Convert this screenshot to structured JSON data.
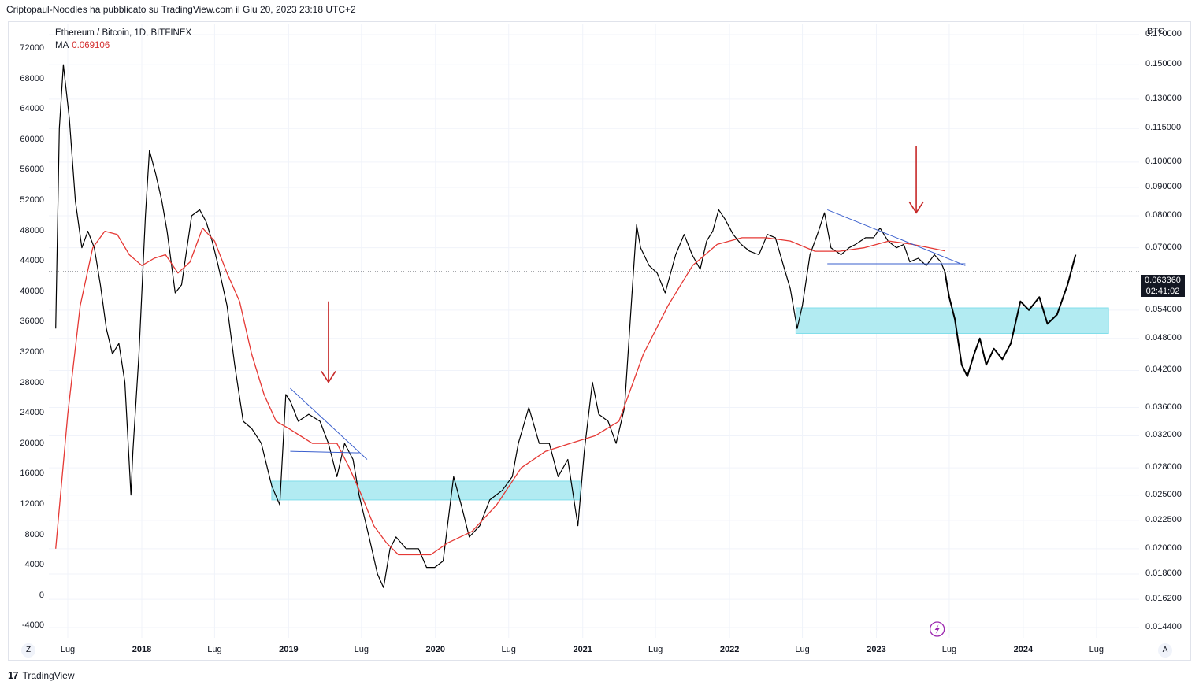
{
  "header": {
    "attribution": "Criptopaul-Noodles ha pubblicato su TradingView.com il Giu 20, 2023 23:18 UTC+2"
  },
  "legend": {
    "symbol": "Ethereum / Bitcoin, 1D, BITFINEX",
    "ma_label": "MA",
    "ma_value": "0.069106"
  },
  "right_axis": {
    "unit": "BTC",
    "current_price": "0.063360",
    "countdown": "02:41:02"
  },
  "footer": {
    "brand": "TradingView",
    "logo_text": "17"
  },
  "buttons": {
    "z_label": "Z",
    "a_label": "A"
  },
  "chart_data": {
    "type": "line",
    "title": "Ethereum / Bitcoin, 1D, BITFINEX",
    "left_axis_ticks": [
      "72000",
      "68000",
      "64000",
      "60000",
      "56000",
      "52000",
      "48000",
      "44000",
      "40000",
      "36000",
      "32000",
      "28000",
      "24000",
      "20000",
      "16000",
      "12000",
      "8000",
      "4000",
      "0",
      "-4000"
    ],
    "right_axis_ticks": [
      "0.170000",
      "0.150000",
      "0.130000",
      "0.115000",
      "0.100000",
      "0.090000",
      "0.080000",
      "0.070000",
      "0.054000",
      "0.048000",
      "0.042000",
      "0.036000",
      "0.032000",
      "0.028000",
      "0.025000",
      "0.022500",
      "0.020000",
      "0.018000",
      "0.016200",
      "0.014400"
    ],
    "x_ticks": [
      {
        "label": "Lug",
        "year": false
      },
      {
        "label": "2018",
        "year": true
      },
      {
        "label": "Lug",
        "year": false
      },
      {
        "label": "2019",
        "year": true
      },
      {
        "label": "Lug",
        "year": false
      },
      {
        "label": "2020",
        "year": true
      },
      {
        "label": "Lug",
        "year": false
      },
      {
        "label": "2021",
        "year": true
      },
      {
        "label": "Lug",
        "year": false
      },
      {
        "label": "2022",
        "year": true
      },
      {
        "label": "Lug",
        "year": false
      },
      {
        "label": "2023",
        "year": true
      },
      {
        "label": "Lug",
        "year": false
      },
      {
        "label": "2024",
        "year": true
      },
      {
        "label": "Lug",
        "year": false
      }
    ],
    "y_scale": "log",
    "current_price": 0.06336,
    "series": [
      {
        "name": "Ethereum / Bitcoin",
        "color": "#000000",
        "points": [
          [
            "2017-06-01",
            0.05
          ],
          [
            "2017-06-10",
            0.115
          ],
          [
            "2017-06-20",
            0.15
          ],
          [
            "2017-07-05",
            0.12
          ],
          [
            "2017-07-20",
            0.085
          ],
          [
            "2017-08-05",
            0.07
          ],
          [
            "2017-08-20",
            0.075
          ],
          [
            "2017-09-05",
            0.07
          ],
          [
            "2017-09-20",
            0.06
          ],
          [
            "2017-10-05",
            0.05
          ],
          [
            "2017-10-20",
            0.045
          ],
          [
            "2017-11-05",
            0.047
          ],
          [
            "2017-11-20",
            0.04
          ],
          [
            "2017-12-05",
            0.025
          ],
          [
            "2017-12-10",
            0.03
          ],
          [
            "2017-12-25",
            0.045
          ],
          [
            "2018-01-10",
            0.08
          ],
          [
            "2018-01-20",
            0.105
          ],
          [
            "2018-02-05",
            0.095
          ],
          [
            "2018-02-20",
            0.085
          ],
          [
            "2018-03-05",
            0.075
          ],
          [
            "2018-03-25",
            0.058
          ],
          [
            "2018-04-10",
            0.06
          ],
          [
            "2018-05-05",
            0.08
          ],
          [
            "2018-05-25",
            0.082
          ],
          [
            "2018-06-10",
            0.078
          ],
          [
            "2018-06-25",
            0.072
          ],
          [
            "2018-07-10",
            0.065
          ],
          [
            "2018-08-01",
            0.055
          ],
          [
            "2018-08-20",
            0.043
          ],
          [
            "2018-09-10",
            0.034
          ],
          [
            "2018-10-01",
            0.033
          ],
          [
            "2018-10-25",
            0.031
          ],
          [
            "2018-11-20",
            0.026
          ],
          [
            "2018-12-10",
            0.024
          ],
          [
            "2018-12-25",
            0.038
          ],
          [
            "2019-01-05",
            0.037
          ],
          [
            "2019-01-25",
            0.034
          ],
          [
            "2019-02-20",
            0.035
          ],
          [
            "2019-03-20",
            0.034
          ],
          [
            "2019-04-10",
            0.031
          ],
          [
            "2019-05-01",
            0.027
          ],
          [
            "2019-05-20",
            0.031
          ],
          [
            "2019-06-10",
            0.029
          ],
          [
            "2019-06-25",
            0.025
          ],
          [
            "2019-07-20",
            0.021
          ],
          [
            "2019-08-10",
            0.018
          ],
          [
            "2019-08-25",
            0.017
          ],
          [
            "2019-09-10",
            0.02
          ],
          [
            "2019-09-25",
            0.021
          ],
          [
            "2019-10-20",
            0.02
          ],
          [
            "2019-11-20",
            0.02
          ],
          [
            "2019-12-10",
            0.0185
          ],
          [
            "2019-12-30",
            0.0185
          ],
          [
            "2020-01-20",
            0.019
          ],
          [
            "2020-02-15",
            0.027
          ],
          [
            "2020-03-05",
            0.024
          ],
          [
            "2020-03-25",
            0.021
          ],
          [
            "2020-04-20",
            0.022
          ],
          [
            "2020-05-15",
            0.0245
          ],
          [
            "2020-06-15",
            0.0255
          ],
          [
            "2020-07-10",
            0.027
          ],
          [
            "2020-07-25",
            0.031
          ],
          [
            "2020-08-20",
            0.036
          ],
          [
            "2020-09-15",
            0.031
          ],
          [
            "2020-10-10",
            0.031
          ],
          [
            "2020-11-01",
            0.027
          ],
          [
            "2020-11-25",
            0.029
          ],
          [
            "2020-12-20",
            0.022
          ],
          [
            "2021-01-05",
            0.03
          ],
          [
            "2021-01-25",
            0.04
          ],
          [
            "2021-02-10",
            0.035
          ],
          [
            "2021-03-05",
            0.034
          ],
          [
            "2021-03-25",
            0.031
          ],
          [
            "2021-04-15",
            0.036
          ],
          [
            "2021-05-05",
            0.06
          ],
          [
            "2021-05-15",
            0.077
          ],
          [
            "2021-05-25",
            0.07
          ],
          [
            "2021-06-15",
            0.065
          ],
          [
            "2021-07-05",
            0.063
          ],
          [
            "2021-07-25",
            0.058
          ],
          [
            "2021-08-20",
            0.068
          ],
          [
            "2021-09-10",
            0.074
          ],
          [
            "2021-09-30",
            0.068
          ],
          [
            "2021-10-20",
            0.064
          ],
          [
            "2021-11-05",
            0.072
          ],
          [
            "2021-11-20",
            0.075
          ],
          [
            "2021-12-05",
            0.082
          ],
          [
            "2021-12-20",
            0.079
          ],
          [
            "2022-01-10",
            0.074
          ],
          [
            "2022-01-30",
            0.071
          ],
          [
            "2022-02-20",
            0.069
          ],
          [
            "2022-03-15",
            0.068
          ],
          [
            "2022-04-05",
            0.074
          ],
          [
            "2022-04-25",
            0.073
          ],
          [
            "2022-05-15",
            0.065
          ],
          [
            "2022-06-01",
            0.059
          ],
          [
            "2022-06-18",
            0.05
          ],
          [
            "2022-07-01",
            0.055
          ],
          [
            "2022-07-20",
            0.068
          ],
          [
            "2022-08-10",
            0.075
          ],
          [
            "2022-08-25",
            0.081
          ],
          [
            "2022-09-10",
            0.07
          ],
          [
            "2022-10-05",
            0.068
          ],
          [
            "2022-10-25",
            0.07
          ],
          [
            "2022-11-10",
            0.071
          ],
          [
            "2022-12-05",
            0.073
          ],
          [
            "2022-12-25",
            0.073
          ],
          [
            "2023-01-10",
            0.076
          ],
          [
            "2023-01-30",
            0.072
          ],
          [
            "2023-02-20",
            0.07
          ],
          [
            "2023-03-10",
            0.071
          ],
          [
            "2023-03-25",
            0.066
          ],
          [
            "2023-04-15",
            0.067
          ],
          [
            "2023-05-05",
            0.065
          ],
          [
            "2023-05-25",
            0.068
          ],
          [
            "2023-06-10",
            0.066
          ],
          [
            "2023-06-20",
            0.0634
          ]
        ]
      },
      {
        "name": "MA",
        "color": "#e53935",
        "points": [
          [
            "2017-06-01",
            0.02
          ],
          [
            "2017-07-01",
            0.035
          ],
          [
            "2017-08-01",
            0.055
          ],
          [
            "2017-09-01",
            0.07
          ],
          [
            "2017-10-01",
            0.075
          ],
          [
            "2017-11-01",
            0.074
          ],
          [
            "2017-12-01",
            0.068
          ],
          [
            "2018-01-01",
            0.065
          ],
          [
            "2018-02-01",
            0.067
          ],
          [
            "2018-03-01",
            0.068
          ],
          [
            "2018-04-01",
            0.063
          ],
          [
            "2018-05-01",
            0.066
          ],
          [
            "2018-06-01",
            0.076
          ],
          [
            "2018-07-01",
            0.072
          ],
          [
            "2018-08-01",
            0.063
          ],
          [
            "2018-09-01",
            0.056
          ],
          [
            "2018-10-01",
            0.045
          ],
          [
            "2018-11-01",
            0.038
          ],
          [
            "2018-12-01",
            0.034
          ],
          [
            "2019-01-01",
            0.033
          ],
          [
            "2019-03-01",
            0.031
          ],
          [
            "2019-05-01",
            0.031
          ],
          [
            "2019-06-01",
            0.028
          ],
          [
            "2019-07-01",
            0.025
          ],
          [
            "2019-08-01",
            0.022
          ],
          [
            "2019-09-01",
            0.0205
          ],
          [
            "2019-10-01",
            0.0195
          ],
          [
            "2019-11-15",
            0.0195
          ],
          [
            "2019-12-20",
            0.0195
          ],
          [
            "2020-02-01",
            0.0205
          ],
          [
            "2020-04-01",
            0.0215
          ],
          [
            "2020-06-01",
            0.024
          ],
          [
            "2020-08-01",
            0.028
          ],
          [
            "2020-10-01",
            0.03
          ],
          [
            "2020-12-01",
            0.031
          ],
          [
            "2021-02-01",
            0.032
          ],
          [
            "2021-04-01",
            0.034
          ],
          [
            "2021-06-01",
            0.045
          ],
          [
            "2021-08-01",
            0.055
          ],
          [
            "2021-10-01",
            0.065
          ],
          [
            "2021-12-01",
            0.071
          ],
          [
            "2022-02-01",
            0.073
          ],
          [
            "2022-04-01",
            0.073
          ],
          [
            "2022-06-01",
            0.072
          ],
          [
            "2022-08-01",
            0.069
          ],
          [
            "2022-10-01",
            0.069
          ],
          [
            "2022-12-01",
            0.07
          ],
          [
            "2023-02-01",
            0.072
          ],
          [
            "2023-04-01",
            0.071
          ],
          [
            "2023-06-20",
            0.069106
          ]
        ]
      },
      {
        "name": "Projection",
        "color": "#000000",
        "points": [
          [
            "2023-06-20",
            0.0634
          ],
          [
            "2023-07-01",
            0.057
          ],
          [
            "2023-07-15",
            0.052
          ],
          [
            "2023-08-01",
            0.043
          ],
          [
            "2023-08-15",
            0.041
          ],
          [
            "2023-09-01",
            0.045
          ],
          [
            "2023-09-15",
            0.048
          ],
          [
            "2023-10-01",
            0.043
          ],
          [
            "2023-10-20",
            0.046
          ],
          [
            "2023-11-10",
            0.044
          ],
          [
            "2023-12-01",
            0.047
          ],
          [
            "2023-12-25",
            0.056
          ],
          [
            "2024-01-15",
            0.054
          ],
          [
            "2024-02-10",
            0.057
          ],
          [
            "2024-03-01",
            0.051
          ],
          [
            "2024-03-25",
            0.053
          ],
          [
            "2024-04-20",
            0.06
          ],
          [
            "2024-05-10",
            0.068
          ]
        ]
      }
    ],
    "annotations": {
      "support_zones": [
        {
          "x0": "2018-11-20",
          "x1": "2020-12-25",
          "y0": 0.0245,
          "y1": 0.0265,
          "color": "#b2ebf2"
        },
        {
          "x0": "2022-06-15",
          "x1": "2024-07-31",
          "y0": 0.049,
          "y1": 0.0545,
          "color": "#b2ebf2"
        }
      ],
      "trend_lines": [
        {
          "x0": "2019-01-05",
          "y0": 0.039,
          "x1": "2019-07-15",
          "y1": 0.029,
          "color": "#3a5fcd"
        },
        {
          "x0": "2019-01-05",
          "y0": 0.03,
          "x1": "2019-06-25",
          "y1": 0.0298,
          "color": "#3a5fcd"
        },
        {
          "x0": "2022-09-01",
          "y0": 0.082,
          "x1": "2023-08-10",
          "y1": 0.065,
          "color": "#3a5fcd"
        },
        {
          "x0": "2022-09-01",
          "y0": 0.0655,
          "x1": "2023-08-10",
          "y1": 0.0655,
          "color": "#3a5fcd"
        }
      ],
      "arrows": [
        {
          "x": "2019-04-10",
          "y_top": 0.056,
          "y_bottom": 0.04,
          "color": "#c62828"
        },
        {
          "x": "2023-04-10",
          "y_top": 0.107,
          "y_bottom": 0.081,
          "color": "#c62828"
        }
      ]
    }
  }
}
